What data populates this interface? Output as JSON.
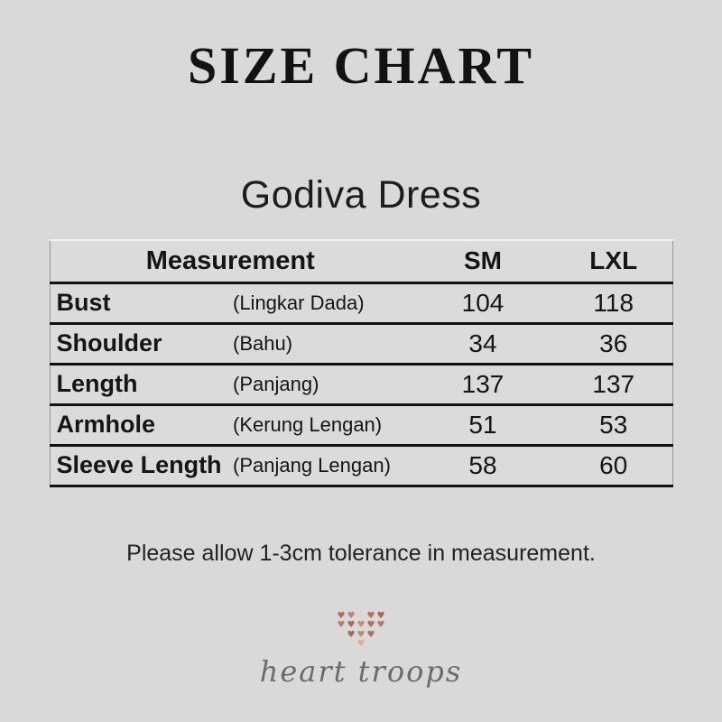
{
  "page": {
    "title": "SIZE CHART",
    "product_name": "Godiva Dress",
    "note": "Please allow 1-3cm tolerance in measurement."
  },
  "size_table": {
    "header": {
      "measurement": "Measurement",
      "sizes": [
        "SM",
        "LXL"
      ]
    },
    "rows": [
      {
        "label": "Bust",
        "translation": "(Lingkar Dada)",
        "values": [
          "104",
          "118"
        ]
      },
      {
        "label": "Shoulder",
        "translation": "(Bahu)",
        "values": [
          "34",
          "36"
        ]
      },
      {
        "label": "Length",
        "translation": "(Panjang)",
        "values": [
          "137",
          "137"
        ]
      },
      {
        "label": "Armhole",
        "translation": "(Kerung Lengan)",
        "values": [
          "51",
          "53"
        ]
      },
      {
        "label": "Sleeve Length",
        "translation": "(Panjang Lengan)",
        "values": [
          "58",
          "60"
        ]
      }
    ]
  },
  "brand": {
    "name": "heart troops",
    "logo_icon": "dot-heart-icon",
    "heart_glyph": "♥",
    "heart_palette": [
      "#aa6c5d",
      "#c08376",
      "#b1735f",
      "#a3655a",
      "#bb7e70",
      "#a96a5c",
      "#c58c7e",
      "#b0705f",
      "#b87a6b",
      "#a56759",
      "#c1877a",
      "#ad6e60",
      "#e2ad9e"
    ]
  },
  "colors": {
    "background": "#d9d9d9",
    "text": "#1a1a1a",
    "table_line": "#101010",
    "brand_text_gray": "#6b6b6b"
  }
}
